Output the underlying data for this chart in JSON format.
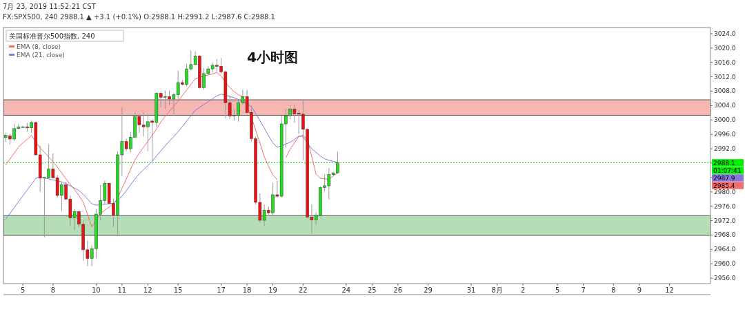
{
  "chart_data": {
    "type": "candlestick",
    "title": "4小时图",
    "subtitle": "7月 23, 2019 11:52:21 CST",
    "annotations": [
      "FX:SPX500, 240 2988.1 ▲ +3.1 (+0.1%) O:2988.1 H:2991.2 L:2987.6 C:2988.1",
      "01:07:41",
      "2987.9",
      "2985.4"
    ],
    "legend_title": "美国标准普尔500指数, 240",
    "legend": "top left",
    "categories": [
      null,
      null,
      null,
      null,
      "5",
      null,
      null,
      null,
      null,
      null,
      null,
      "8",
      null,
      null,
      null,
      null,
      null,
      null,
      null,
      null,
      null,
      "10",
      null,
      null,
      null,
      null,
      null,
      "11",
      null,
      null,
      null,
      null,
      null,
      "12",
      null,
      null,
      null,
      null,
      null,
      null,
      "15",
      null,
      null,
      null,
      null,
      null,
      null,
      null,
      null,
      null,
      "17",
      null,
      null,
      null,
      null,
      null,
      "18",
      null,
      null,
      null,
      null,
      null,
      "19",
      null,
      null,
      null,
      null,
      null,
      null,
      "22",
      null,
      null,
      null,
      null,
      null,
      null,
      null,
      null,
      null,
      "24",
      null,
      null,
      null,
      null,
      null,
      "25",
      null,
      null,
      null,
      null,
      null,
      "26",
      null,
      null,
      null,
      null,
      null,
      null,
      "29",
      null,
      null,
      null,
      null,
      null,
      null,
      null,
      null,
      null,
      "31",
      null,
      null,
      null,
      null,
      null,
      "8月",
      null,
      null,
      null,
      null,
      null,
      "2",
      null,
      null,
      null,
      null,
      null,
      null,
      null,
      "5",
      null,
      null,
      null,
      null,
      null,
      "7",
      null,
      null,
      null,
      null,
      null,
      null,
      "8",
      null,
      null,
      null,
      null,
      null,
      "9",
      null,
      null,
      null,
      null,
      null,
      null,
      "12",
      null,
      null,
      null,
      null,
      null,
      null,
      null,
      null,
      null
    ],
    "ohlc": [
      [
        2995.1,
        2996.4,
        2993.9,
        2995.7
      ],
      [
        2995.6,
        2996.1,
        2993.2,
        2994.7
      ],
      [
        2994.7,
        2998.9,
        2994.2,
        2997.6
      ],
      [
        2997.6,
        2998.9,
        2997.4,
        2998.1
      ],
      [
        2998.0,
        2998.3,
        2997.9,
        2998.1
      ],
      [
        2998.1,
        2999.2,
        2996.7,
        2997.8
      ],
      [
        2997.8,
        2999.8,
        2996.4,
        2999.3
      ],
      [
        2999.3,
        2999.5,
        2990.1,
        2990.3
      ],
      [
        2990.3,
        2992.9,
        2980.0,
        2983.8
      ],
      [
        2983.8,
        2984.1,
        2967.4,
        2984.0
      ],
      [
        2983.9,
        2993.2,
        2983.8,
        2986.4
      ],
      [
        2986.4,
        2990.7,
        2983.8,
        2983.9
      ],
      [
        2983.9,
        2984.7,
        2978.4,
        2979.0
      ],
      [
        2979.0,
        2982.8,
        2974.7,
        2982.0
      ],
      [
        2982.0,
        2982.8,
        2977.8,
        2978.0
      ],
      [
        2978.0,
        2979.0,
        2970.5,
        2972.8
      ],
      [
        2972.8,
        2975.2,
        2969.3,
        2974.5
      ],
      [
        2974.5,
        2974.9,
        2970.1,
        2971.0
      ],
      [
        2971.0,
        2972.1,
        2960.8,
        2963.9
      ],
      [
        2963.9,
        2966.5,
        2959.3,
        2961.5
      ],
      [
        2961.5,
        2965.1,
        2959.3,
        2964.2
      ],
      [
        2964.2,
        2975.2,
        2961.5,
        2973.8
      ],
      [
        2973.8,
        2981.9,
        2972.1,
        2977.6
      ],
      [
        2977.6,
        2983.1,
        2976.5,
        2982.4
      ],
      [
        2982.4,
        2982.5,
        2976.5,
        2976.8
      ],
      [
        2976.8,
        2978.1,
        2970.2,
        2973.5
      ],
      [
        2973.5,
        2991.3,
        2967.7,
        2990.3
      ],
      [
        2990.3,
        3003.6,
        2984.4,
        2994.0
      ],
      [
        2994.0,
        2994.8,
        2991.3,
        2992.0
      ],
      [
        2992.0,
        2996.7,
        2991.0,
        2995.2
      ],
      [
        2995.2,
        3002.1,
        2995.1,
        3001.0
      ],
      [
        3001.0,
        3001.7,
        2996.4,
        2998.6
      ],
      [
        2998.6,
        3002.2,
        2995.4,
        2998.1
      ],
      [
        2998.1,
        3001.7,
        2991.3,
        2999.5
      ],
      [
        2999.7,
        3000.2,
        2988.5,
        2999.3
      ],
      [
        2999.3,
        3007.7,
        2998.1,
        3007.4
      ],
      [
        3007.4,
        3007.9,
        3003.5,
        3006.3
      ],
      [
        3006.4,
        3008.2,
        3003.1,
        3006.5
      ],
      [
        3006.5,
        3008.2,
        3004.1,
        3005.8
      ],
      [
        3005.8,
        3007.5,
        3001.2,
        3007.0
      ],
      [
        3007.0,
        3013.7,
        3005.5,
        3010.4
      ],
      [
        3010.4,
        3011.2,
        3009.6,
        3009.9
      ],
      [
        3009.9,
        3015.6,
        3009.3,
        3014.2
      ],
      [
        3014.2,
        3019.3,
        3013.7,
        3015.4
      ],
      [
        3015.4,
        3019.1,
        3015.3,
        3017.8
      ],
      [
        3017.8,
        3018.0,
        3008.7,
        3009.0
      ],
      [
        3009.0,
        3014.4,
        3008.4,
        3012.9
      ],
      [
        3012.9,
        3015.0,
        3012.5,
        3014.2
      ],
      [
        3014.2,
        3016.0,
        3013.1,
        3015.2
      ],
      [
        3015.2,
        3016.9,
        3013.4,
        3014.9
      ],
      [
        3014.9,
        3017.2,
        3012.8,
        3013.4
      ],
      [
        3013.4,
        3013.7,
        3000.5,
        3004.8
      ],
      [
        3004.8,
        3006.8,
        3000.2,
        3001.1
      ],
      [
        3001.1,
        3003.0,
        2999.8,
        3001.3
      ],
      [
        3001.3,
        3005.8,
        2999.5,
        3004.8
      ],
      [
        3004.8,
        3008.4,
        3004.3,
        3006.5
      ],
      [
        3006.5,
        3008.4,
        3001.7,
        3002.1
      ],
      [
        3002.1,
        3003.3,
        2993.9,
        2994.8
      ],
      [
        2994.8,
        2995.4,
        2976.5,
        2977.1
      ],
      [
        2977.1,
        2979.6,
        2971.4,
        2972.1
      ],
      [
        2972.1,
        2976.5,
        2970.5,
        2974.9
      ],
      [
        2974.9,
        2975.9,
        2973.7,
        2974.2
      ],
      [
        2974.2,
        2982.5,
        2973.7,
        2979.2
      ],
      [
        2979.2,
        2983.1,
        2978.4,
        2978.8
      ],
      [
        2978.8,
        3001.1,
        2978.4,
        2998.9
      ],
      [
        2998.9,
        3003.0,
        2992.3,
        3001.2
      ],
      [
        3001.2,
        3004.1,
        3000.2,
        3003.0
      ],
      [
        3003.0,
        3004.3,
        2999.2,
        3001.7
      ],
      [
        3001.9,
        3002.7,
        2996.1,
        3001.6
      ],
      [
        3001.6,
        3005.4,
        2988.8,
        2997.4
      ],
      [
        2997.4,
        2997.6,
        2972.7,
        2973.0
      ],
      [
        2973.0,
        2976.6,
        2968.4,
        2972.2
      ],
      [
        2972.2,
        2974.3,
        2970.8,
        2973.5
      ],
      [
        2973.5,
        2981.5,
        2973.0,
        2981.2
      ],
      [
        2981.2,
        2984.8,
        2980.2,
        2981.7
      ],
      [
        2981.7,
        2986.6,
        2977.9,
        2984.8
      ],
      [
        2984.8,
        2985.6,
        2984.5,
        2985.3
      ],
      [
        2985.3,
        2991.2,
        2985.1,
        2988.1
      ],
      null,
      null,
      null,
      null,
      null,
      null,
      null,
      null,
      null,
      null,
      null,
      null,
      null,
      null,
      null,
      null,
      null,
      null,
      null,
      null,
      null,
      null,
      null,
      null,
      null,
      null,
      null,
      null,
      null,
      null,
      null,
      null,
      null,
      null,
      null,
      null,
      null,
      null,
      null,
      null,
      null,
      null,
      null,
      null,
      null,
      null,
      null,
      null,
      null,
      null,
      null,
      null,
      null,
      null,
      null,
      null,
      null,
      null,
      null,
      null,
      null,
      null,
      null,
      null,
      null,
      null,
      null,
      null,
      null,
      null,
      null,
      null,
      null,
      null,
      null,
      null,
      null,
      null,
      null,
      null,
      null,
      null,
      null,
      null,
      null,
      null
    ],
    "series": [
      {
        "type": "line",
        "name": "EMA (8, close)",
        "color": "#f26d6d",
        "values": [
          2987.4,
          2989.1,
          2990.8,
          2992.5,
          2993.6,
          2994.6,
          2995.7,
          2993.9,
          2992.2,
          2991.0,
          2989.7,
          2988.4,
          2986.9,
          2985.3,
          2983.6,
          2982.1,
          2980.6,
          2979.0,
          2977.1,
          2973.8,
          2970.3,
          2972.0,
          2974.0,
          2974.9,
          2975.8,
          2976.7,
          2978.3,
          2981.0,
          2983.6,
          2986.3,
          2988.9,
          2990.8,
          2992.4,
          2994.1,
          2995.7,
          2997.5,
          2999.4,
          3001.0,
          3002.4,
          3003.8,
          3005.2,
          3006.8,
          3008.4,
          3009.9,
          3011.5,
          3011.8,
          3012.2,
          3012.5,
          3012.8,
          3013.2,
          3012.2,
          3010.5,
          3009.0,
          3007.9,
          3007.0,
          3006.5,
          3003.6,
          3000.8,
          2997.2,
          2993.5,
          2989.8,
          2987.1,
          2984.7,
          2983.4,
          null,
          2989.5,
          2991.9,
          2993.6,
          2995.4,
          2995.8,
          2994.6,
          2989.8,
          2985.0,
          2983.8,
          2983.6,
          2983.5,
          2984.4,
          2985.3,
          null,
          null,
          null,
          null,
          null,
          null,
          null,
          null,
          null,
          null,
          null,
          null,
          null,
          null,
          null,
          null,
          null,
          null,
          null,
          null,
          null,
          null,
          null,
          null,
          null,
          null,
          null,
          null,
          null,
          null,
          null,
          null,
          null,
          null,
          null,
          null,
          null,
          null,
          null,
          null,
          null,
          null,
          null,
          null,
          null,
          null,
          null,
          null,
          null,
          null,
          null,
          null,
          null,
          null,
          null,
          null,
          null,
          null,
          null,
          null,
          null,
          null,
          null,
          null,
          null,
          null,
          null,
          null,
          null,
          null,
          null,
          null,
          null,
          null,
          null,
          null,
          null,
          null,
          null,
          null,
          null,
          null,
          null,
          null,
          null,
          null
        ]
      },
      {
        "type": "line",
        "name": "EMA (21, close)",
        "color": "#8877dd",
        "values": [
          2972.4,
          2974.0,
          2975.6,
          2977.3,
          2978.9,
          2980.5,
          2982.1,
          2983.8,
          2984.1,
          2983.9,
          2983.6,
          2983.3,
          2983.1,
          2982.8,
          2982.3,
          2981.7,
          2981.0,
          2980.4,
          2979.3,
          2978.0,
          2976.7,
          2976.3,
          2976.4,
          2976.6,
          2976.7,
          2976.8,
          2977.7,
          2978.8,
          2980.3,
          2982.0,
          2983.6,
          2985.0,
          2986.2,
          2987.3,
          2988.5,
          2990.0,
          2991.4,
          2992.8,
          2994.1,
          2995.4,
          2996.7,
          2998.2,
          2999.7,
          3001.2,
          3002.7,
          3003.5,
          3004.3,
          3005.1,
          3005.9,
          3006.7,
          3007.2,
          3006.9,
          3006.5,
          3006.2,
          3005.7,
          3005.1,
          3004.4,
          3003.7,
          3001.8,
          2999.8,
          2997.7,
          2995.6,
          2993.6,
          2992.4,
          2992.8,
          2993.3,
          2993.8,
          2994.6,
          2995.5,
          2995.4,
          2993.6,
          2992.0,
          2991.0,
          2990.0,
          2989.2,
          2988.8,
          2988.5,
          2988.2,
          null,
          null,
          null,
          null,
          null,
          null,
          null,
          null,
          null,
          null,
          null,
          null,
          null,
          null,
          null,
          null,
          null,
          null,
          null,
          null,
          null,
          null,
          null,
          null,
          null,
          null,
          null,
          null,
          null,
          null,
          null,
          null,
          null,
          null,
          null,
          null,
          null,
          null,
          null,
          null,
          null,
          null,
          null,
          null,
          null,
          null,
          null,
          null,
          null,
          null,
          null,
          null,
          null,
          null,
          null,
          null,
          null,
          null,
          null,
          null,
          null,
          null,
          null,
          null,
          null,
          null,
          null,
          null,
          null,
          null,
          null,
          null,
          null,
          null,
          null,
          null,
          null,
          null,
          null,
          null,
          null,
          null,
          null,
          null,
          null,
          null
        ]
      }
    ],
    "bands": [
      {
        "axis": "y",
        "from": 3001.3,
        "to": 3005.6,
        "color": "#f4a9a4"
      },
      {
        "axis": "y",
        "from": 2967.9,
        "to": 2973.4,
        "color": "#a9d8a9"
      }
    ],
    "ref_lines": [
      {
        "axis": "y",
        "value": 2988.1,
        "label": "2988.1",
        "color": "#00ee00",
        "line_style": "dotted"
      }
    ],
    "ylim": [
      2954.5,
      3025.7
    ],
    "yticks": [
      {
        "value": 2956,
        "label": "2956.0"
      },
      {
        "value": 2960,
        "label": "2960.0"
      },
      {
        "value": 2964,
        "label": "2964.0"
      },
      {
        "value": 2968,
        "label": "2968.0"
      },
      {
        "value": 2972,
        "label": "2972.0"
      },
      {
        "value": 2976,
        "label": "2976.0"
      },
      {
        "value": 2980,
        "label": "2980.0"
      },
      {
        "value": 2984,
        "label": null
      },
      {
        "value": 2988,
        "label": null
      },
      {
        "value": 2992,
        "label": "2992.0"
      },
      {
        "value": 2996,
        "label": "2996.0"
      },
      {
        "value": 3000,
        "label": "3000.0"
      },
      {
        "value": 3004,
        "label": "3004.0"
      },
      {
        "value": 3008,
        "label": "3008.0"
      },
      {
        "value": 3012,
        "label": "3012.0"
      },
      {
        "value": 3016,
        "label": "3016.0"
      },
      {
        "value": 3020,
        "label": "3020.0"
      },
      {
        "value": 3024,
        "label": "3024.0"
      }
    ]
  }
}
